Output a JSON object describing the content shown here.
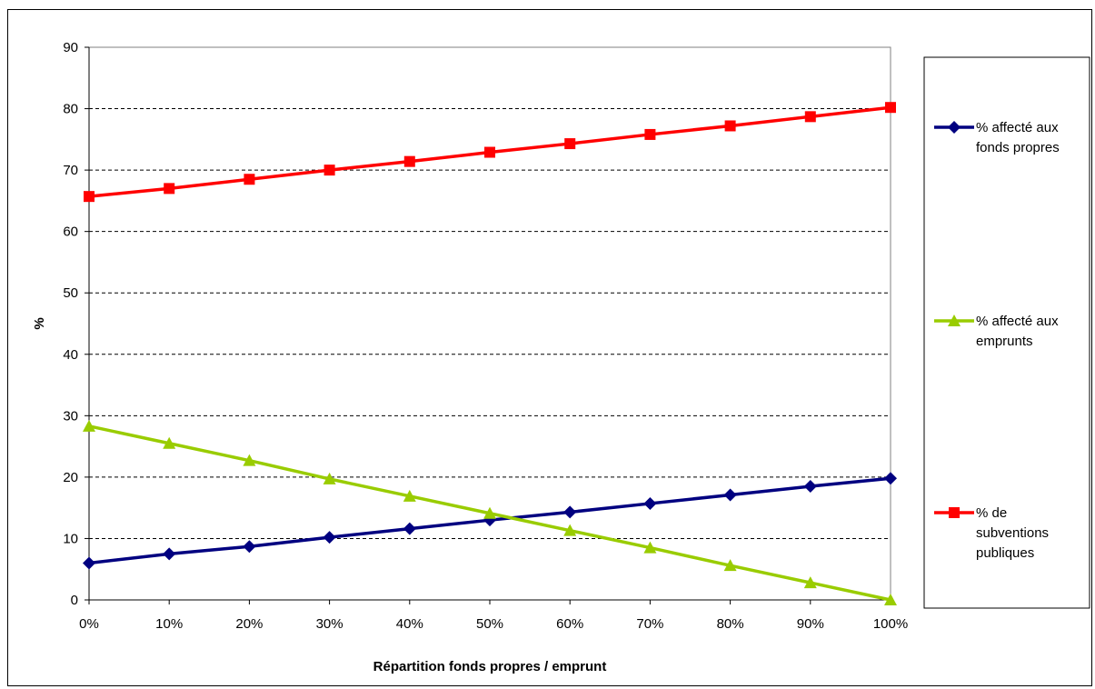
{
  "chart_data": {
    "type": "line",
    "categories": [
      "0%",
      "10%",
      "20%",
      "30%",
      "40%",
      "50%",
      "60%",
      "70%",
      "80%",
      "90%",
      "100%"
    ],
    "xlabel": "Répartition fonds propres / emprunt",
    "ylabel": "%",
    "ylim": [
      0,
      90
    ],
    "yticks": [
      "0",
      "10",
      "20",
      "30",
      "40",
      "50",
      "60",
      "70",
      "80",
      "90"
    ],
    "grid": true,
    "legend_position": "right",
    "series": [
      {
        "name": "% affecté aux fonds propres",
        "name_lines": [
          "% affecté aux",
          "fonds propres"
        ],
        "color": "#000080",
        "marker": "diamond",
        "values": [
          6.0,
          7.5,
          8.7,
          10.2,
          11.6,
          13.0,
          14.3,
          15.7,
          17.1,
          18.5,
          19.8
        ]
      },
      {
        "name": "% affecté aux emprunts",
        "name_lines": [
          "% affecté aux",
          "emprunts"
        ],
        "color": "#99CC00",
        "marker": "triangle",
        "values": [
          28.3,
          25.5,
          22.7,
          19.7,
          16.9,
          14.1,
          11.3,
          8.5,
          5.6,
          2.8,
          0.0
        ]
      },
      {
        "name": "% de subventions publiques",
        "name_lines": [
          "% de",
          "subventions",
          "publiques"
        ],
        "color": "#FF0000",
        "marker": "square",
        "values": [
          65.7,
          67.0,
          68.5,
          70.0,
          71.4,
          72.9,
          74.3,
          75.8,
          77.2,
          78.7,
          80.2
        ]
      }
    ]
  }
}
